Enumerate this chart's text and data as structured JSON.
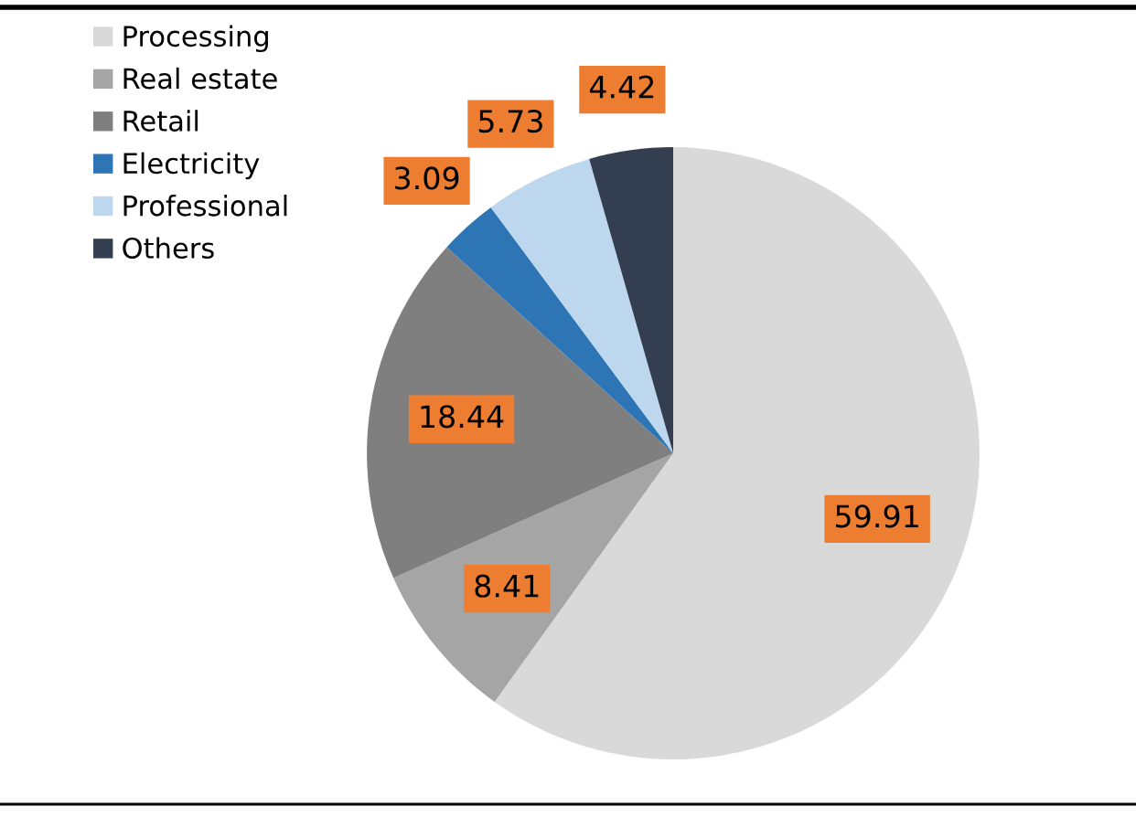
{
  "chart_data": {
    "type": "pie",
    "categories": [
      "Processing",
      "Real estate",
      "Retail",
      "Electricity",
      "Professional",
      "Others"
    ],
    "values": [
      59.91,
      8.41,
      18.44,
      3.09,
      5.73,
      4.42
    ],
    "colors": [
      "#d9d9d9",
      "#a5a5a5",
      "#7f7f7f",
      "#2e75b6",
      "#bdd7ee",
      "#333f50"
    ],
    "data_labels": true,
    "legend": "top left"
  }
}
